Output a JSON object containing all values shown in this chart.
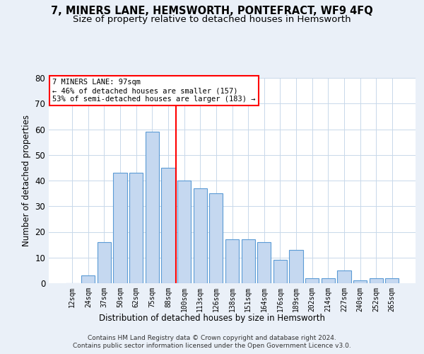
{
  "title": "7, MINERS LANE, HEMSWORTH, PONTEFRACT, WF9 4FQ",
  "subtitle": "Size of property relative to detached houses in Hemsworth",
  "xlabel": "Distribution of detached houses by size in Hemsworth",
  "ylabel": "Number of detached properties",
  "categories": [
    "12sqm",
    "24sqm",
    "37sqm",
    "50sqm",
    "62sqm",
    "75sqm",
    "88sqm",
    "100sqm",
    "113sqm",
    "126sqm",
    "138sqm",
    "151sqm",
    "164sqm",
    "176sqm",
    "189sqm",
    "202sqm",
    "214sqm",
    "227sqm",
    "240sqm",
    "252sqm",
    "265sqm"
  ],
  "values": [
    0,
    3,
    16,
    43,
    43,
    59,
    45,
    40,
    37,
    35,
    17,
    17,
    16,
    9,
    13,
    2,
    2,
    5,
    1,
    2,
    2
  ],
  "bar_color": "#c5d8f0",
  "bar_edge_color": "#5b9bd5",
  "annotation_box_text_line1": "7 MINERS LANE: 97sqm",
  "annotation_box_text_line2": "← 46% of detached houses are smaller (157)",
  "annotation_box_text_line3": "53% of semi-detached houses are larger (183) →",
  "ylim": [
    0,
    80
  ],
  "yticks": [
    0,
    10,
    20,
    30,
    40,
    50,
    60,
    70,
    80
  ],
  "footer_line1": "Contains HM Land Registry data © Crown copyright and database right 2024.",
  "footer_line2": "Contains public sector information licensed under the Open Government Licence v3.0.",
  "bg_color": "#eaf0f8",
  "plot_bg_color": "#ffffff",
  "grid_color": "#c8d8ea",
  "title_fontsize": 10.5,
  "subtitle_fontsize": 9.5,
  "annotation_line_color": "red",
  "annotation_box_edge_color": "red",
  "vline_x": 6.5
}
